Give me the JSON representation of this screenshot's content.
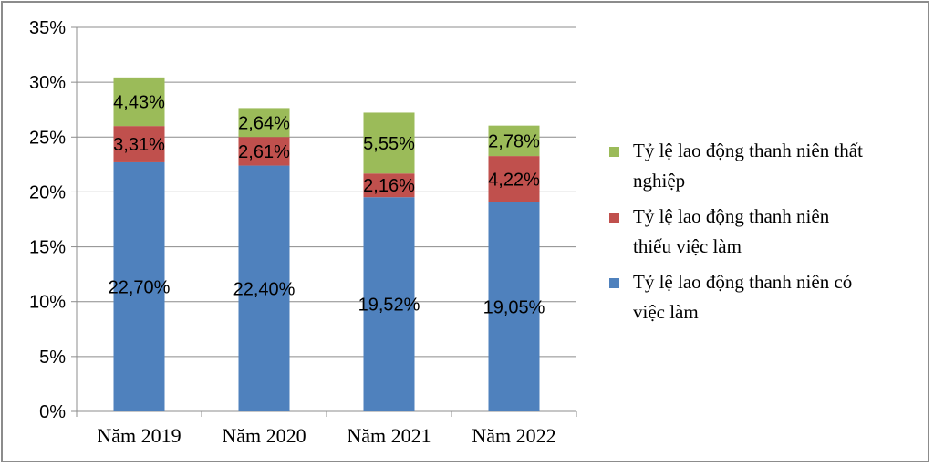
{
  "chart_data": {
    "type": "bar",
    "stacked": true,
    "categories": [
      "Năm 2019",
      "Năm 2020",
      "Năm 2021",
      "Năm 2022"
    ],
    "series": [
      {
        "name": "Tỷ lệ lao động thanh niên có việc làm",
        "values": [
          22.7,
          22.4,
          19.52,
          19.05
        ],
        "labels": [
          "22,70%",
          "22,40%",
          "19,52%",
          "19,05%"
        ],
        "color": "#4f81bd",
        "legend_lines": [
          "Tỷ lệ lao động thanh niên có",
          "việc làm"
        ]
      },
      {
        "name": "Tỷ lệ lao động thanh niên thiếu việc làm",
        "values": [
          3.31,
          2.61,
          2.16,
          4.22
        ],
        "labels": [
          "3,31%",
          "2,61%",
          "2,16%",
          "4,22%"
        ],
        "color": "#c0504d",
        "legend_lines": [
          "Tỷ lệ lao động thanh niên",
          "thiếu việc làm"
        ]
      },
      {
        "name": "Tỷ lệ lao động thanh niên thất nghiệp",
        "values": [
          4.43,
          2.64,
          5.55,
          2.78
        ],
        "labels": [
          "4,43%",
          "2,64%",
          "5,55%",
          "2,78%"
        ],
        "color": "#9bbb59",
        "legend_lines": [
          "Tỷ lệ lao động thanh niên thất",
          "nghiệp"
        ]
      }
    ],
    "yticks": [
      "0%",
      "5%",
      "10%",
      "15%",
      "20%",
      "25%",
      "30%",
      "35%"
    ],
    "ylim": [
      0,
      35
    ],
    "grid": true,
    "legend_position": "right",
    "title": "",
    "xlabel": "",
    "ylabel": ""
  }
}
